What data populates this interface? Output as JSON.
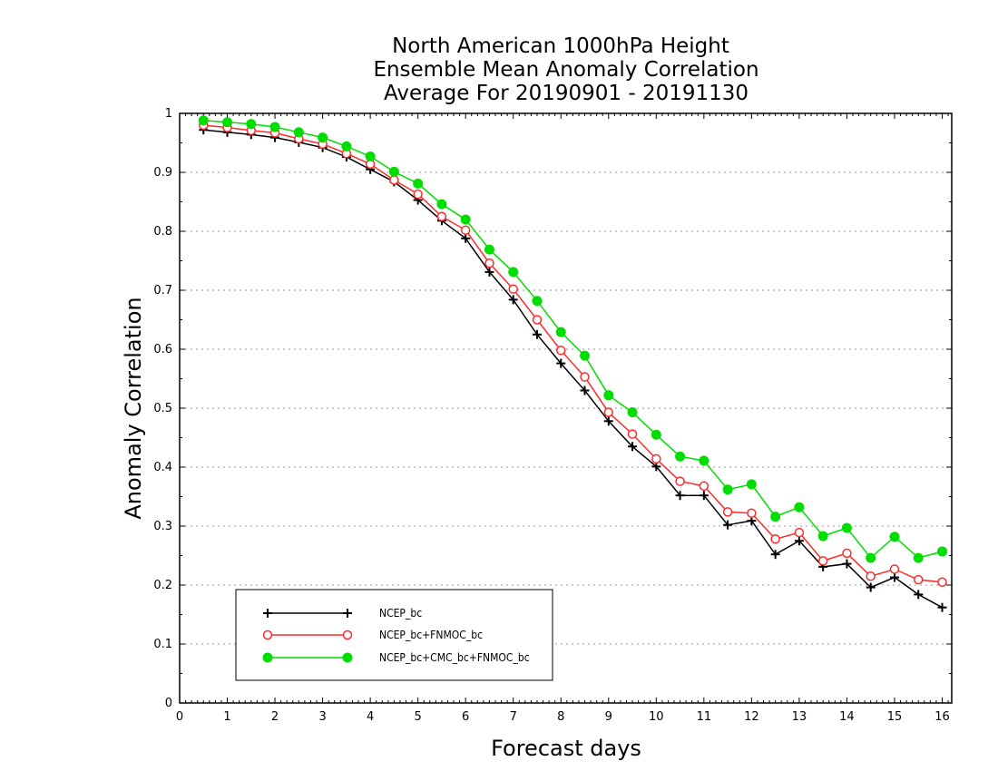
{
  "chart_data": {
    "type": "line",
    "title_lines": [
      "North American 1000hPa Height",
      "Ensemble Mean Anomaly Correlation",
      "Average For 20190901 - 20191130"
    ],
    "xlabel": "Forecast days",
    "ylabel": "Anomaly Correlation",
    "xlim": [
      0,
      16.2
    ],
    "ylim": [
      0,
      1
    ],
    "x_ticks": [
      0,
      1,
      2,
      3,
      4,
      5,
      6,
      7,
      8,
      9,
      10,
      11,
      12,
      13,
      14,
      15,
      16
    ],
    "y_ticks": [
      0,
      0.1,
      0.2,
      0.3,
      0.4,
      0.5,
      0.6,
      0.7,
      0.8,
      0.9,
      1
    ],
    "y_tick_labels": [
      "0",
      "0.1",
      "0.2",
      "0.3",
      "0.4",
      "0.5",
      "0.6",
      "0.7",
      "0.8",
      "0.9",
      "1"
    ],
    "grid": "horizontal dotted",
    "legend_position": "bottom-left",
    "x": [
      0.5,
      1.0,
      1.5,
      2.0,
      2.5,
      3.0,
      3.5,
      4.0,
      4.5,
      5.0,
      5.5,
      6.0,
      6.5,
      7.0,
      7.5,
      8.0,
      8.5,
      9.0,
      9.5,
      10.0,
      10.5,
      11.0,
      11.5,
      12.0,
      12.5,
      13.0,
      13.5,
      14.0,
      14.5,
      15.0,
      15.5,
      16.0
    ],
    "series": [
      {
        "name": "NCEP_bc",
        "color": "#000000",
        "marker": "plus",
        "values": [
          0.972,
          0.968,
          0.964,
          0.959,
          0.951,
          0.942,
          0.926,
          0.905,
          0.884,
          0.853,
          0.818,
          0.788,
          0.731,
          0.684,
          0.625,
          0.576,
          0.53,
          0.478,
          0.435,
          0.401,
          0.352,
          0.352,
          0.302,
          0.309,
          0.252,
          0.275,
          0.231,
          0.236,
          0.196,
          0.213,
          0.184,
          0.162
        ]
      },
      {
        "name": "NCEP_bc+FNMOC_bc",
        "color": "#ff2a2a",
        "marker": "open-circle",
        "values": [
          0.98,
          0.976,
          0.971,
          0.967,
          0.957,
          0.948,
          0.932,
          0.914,
          0.887,
          0.863,
          0.825,
          0.802,
          0.746,
          0.702,
          0.65,
          0.598,
          0.553,
          0.493,
          0.456,
          0.414,
          0.376,
          0.368,
          0.324,
          0.322,
          0.278,
          0.289,
          0.241,
          0.254,
          0.215,
          0.227,
          0.209,
          0.205
        ]
      },
      {
        "name": "NCEP_bc+CMC_bc+FNMOC_bc",
        "color": "#00dd00",
        "marker": "filled-circle",
        "values": [
          0.988,
          0.985,
          0.982,
          0.977,
          0.968,
          0.959,
          0.944,
          0.927,
          0.901,
          0.881,
          0.846,
          0.82,
          0.769,
          0.731,
          0.682,
          0.629,
          0.589,
          0.522,
          0.493,
          0.455,
          0.418,
          0.411,
          0.362,
          0.371,
          0.316,
          0.332,
          0.283,
          0.297,
          0.246,
          0.282,
          0.246,
          0.257
        ]
      }
    ]
  }
}
